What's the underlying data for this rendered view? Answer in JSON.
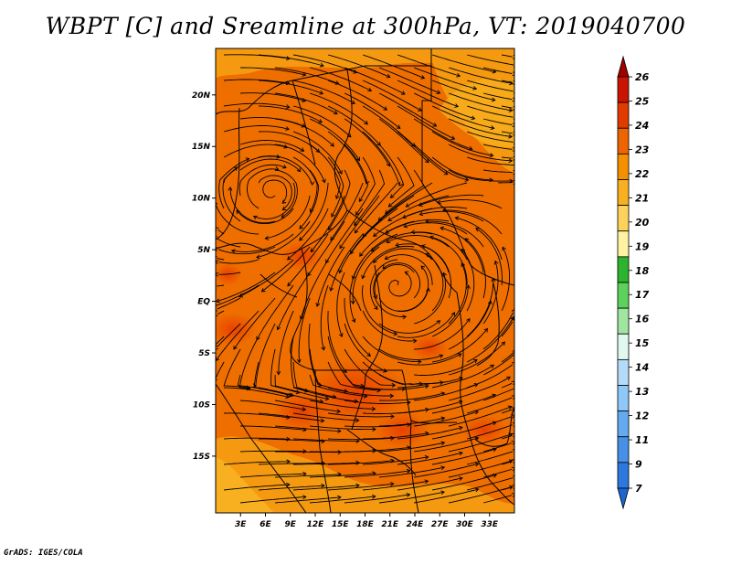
{
  "title": "WBPT [C] and Sreamline at 300hPa, VT: 2019040700",
  "credit": "GrADS: IGES/COLA",
  "map": {
    "lat_labels": [
      "20N",
      "15N",
      "10N",
      "5N",
      "EQ",
      "5S",
      "10S",
      "15S"
    ],
    "lon_labels": [
      "3E",
      "6E",
      "9E",
      "12E",
      "15E",
      "18E",
      "21E",
      "24E",
      "27E",
      "30E",
      "33E"
    ],
    "lon_range": [
      0,
      36
    ],
    "lat_range": [
      -20.5,
      24.5
    ]
  },
  "colorbar": {
    "labels": [
      "26",
      "25",
      "24",
      "23",
      "22",
      "21",
      "20",
      "19",
      "18",
      "17",
      "16",
      "15",
      "14",
      "13",
      "12",
      "11",
      "9",
      "7"
    ],
    "colors": [
      "#a00000",
      "#c81400",
      "#e03c00",
      "#ee6400",
      "#f59000",
      "#f8b020",
      "#fcd25a",
      "#fff2a0",
      "#2db42d",
      "#5cd25c",
      "#a0e6a0",
      "#e0f8f0",
      "#b4dcfa",
      "#8ec8f8",
      "#64aaf0",
      "#4690e6",
      "#2c78dc",
      "#1e64d2"
    ]
  }
}
